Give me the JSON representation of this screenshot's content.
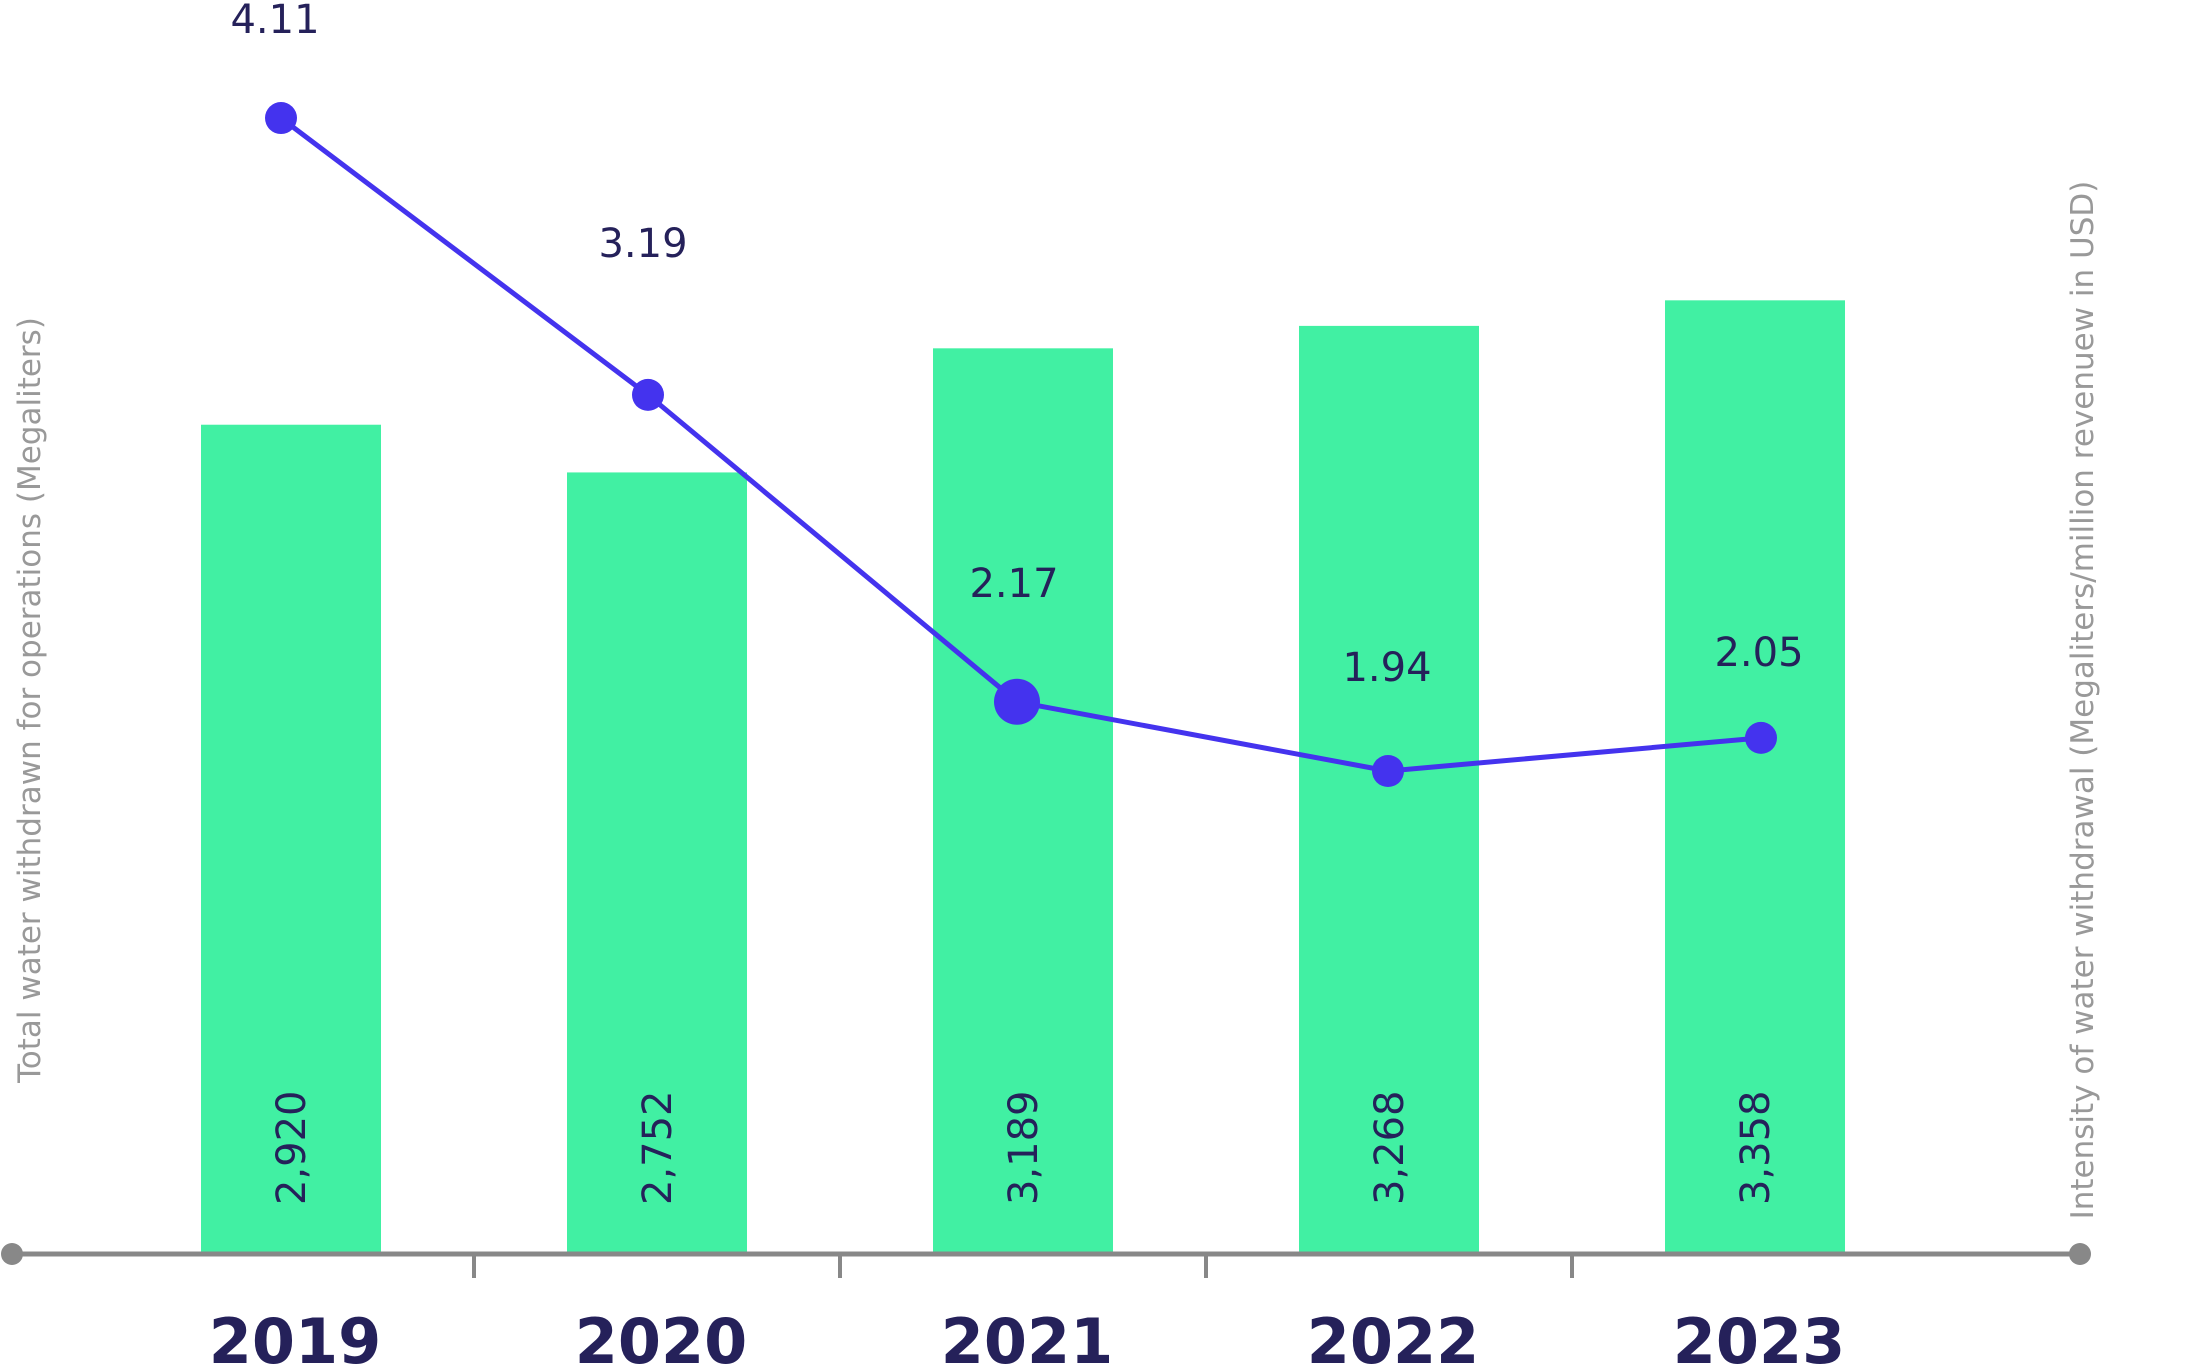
{
  "chart_data": {
    "type": "bar",
    "categories": [
      "2019",
      "2020",
      "2021",
      "2022",
      "2023"
    ],
    "series": [
      {
        "type": "bar",
        "axis": "left",
        "values": [
          2920,
          2752,
          3189,
          3268,
          3358
        ],
        "value_labels": [
          "2,920",
          "2,752",
          "3,189",
          "3,268",
          "3,358"
        ],
        "color": "#41f0a3"
      },
      {
        "type": "line",
        "axis": "right",
        "values": [
          4.11,
          3.19,
          2.17,
          1.94,
          2.05
        ],
        "value_labels": [
          "4.11",
          "3.19",
          "2.17",
          "1.94",
          "2.05"
        ],
        "color": "#4433ee"
      }
    ],
    "ylabel": "Total water withdrawn for operations (Megaliters)",
    "y2label": "Intensity of water withdrawal (Megaliters/million revenuew in USD)",
    "ylim": [
      0,
      4000
    ],
    "y2lim": [
      0,
      4.5
    ],
    "grid": false,
    "axis_color": "#888888",
    "label_color": "#25215a"
  }
}
